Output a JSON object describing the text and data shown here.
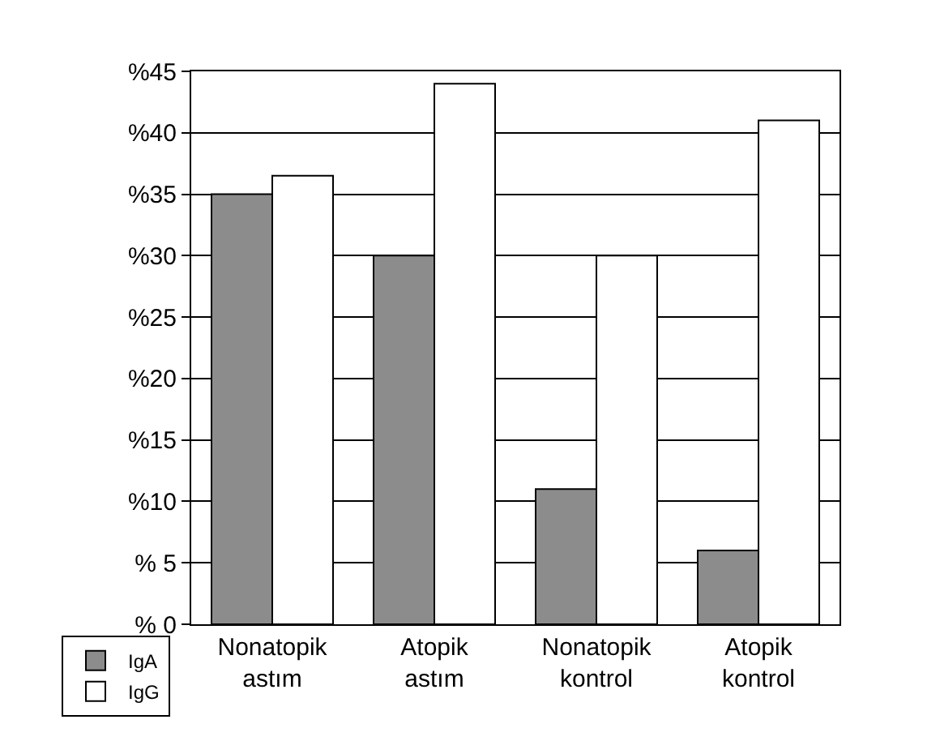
{
  "chart_data": {
    "type": "bar",
    "categories": [
      "Nonatopik astım",
      "Atopik astım",
      "Nonatopik kontrol",
      "Atopik kontrol"
    ],
    "series": [
      {
        "name": "IgA",
        "color": "#8c8c8c",
        "values": [
          35,
          30,
          11,
          6
        ]
      },
      {
        "name": "IgG",
        "color": "#ffffff",
        "values": [
          36.5,
          44,
          30,
          41
        ]
      }
    ],
    "ylim": [
      0,
      45
    ],
    "yticks": [
      {
        "value": 0,
        "label": "% 0"
      },
      {
        "value": 5,
        "label": "% 5"
      },
      {
        "value": 10,
        "label": "%10"
      },
      {
        "value": 15,
        "label": "%15"
      },
      {
        "value": 20,
        "label": "%20"
      },
      {
        "value": 25,
        "label": "%25"
      },
      {
        "value": 30,
        "label": "%30"
      },
      {
        "value": 35,
        "label": "%35"
      },
      {
        "value": 40,
        "label": "%40"
      },
      {
        "value": 45,
        "label": "%45"
      }
    ],
    "grid": "y",
    "legend": "bottom left"
  }
}
